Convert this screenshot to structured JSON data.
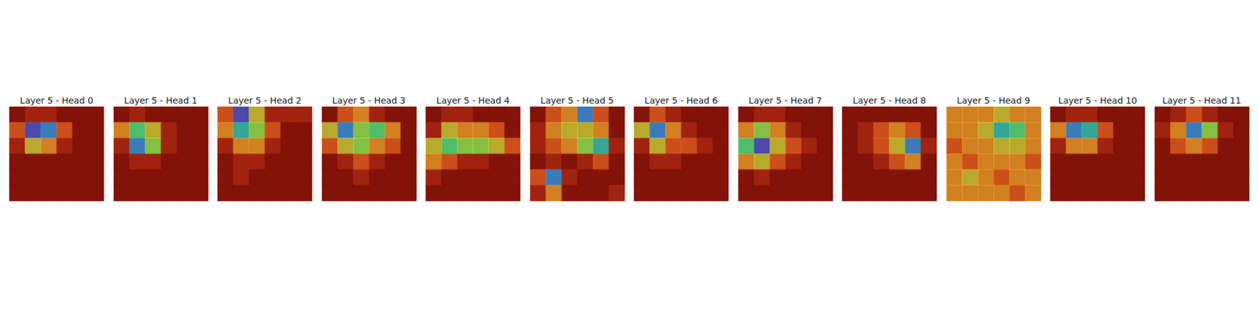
{
  "chart_data": [
    {
      "type": "heatmap",
      "title": "Layer 5 - Head 0",
      "tick_labels": false,
      "color_range": [
        0,
        1
      ],
      "cells": [
        [
          0,
          0.1,
          0.1,
          0,
          0,
          0
        ],
        [
          0.2,
          0.9,
          0.8,
          0.2,
          0,
          0
        ],
        [
          0.1,
          0.4,
          0.3,
          0.1,
          0,
          0
        ],
        [
          0,
          0,
          0,
          0,
          0,
          0
        ],
        [
          0,
          0,
          0,
          0,
          0,
          0
        ],
        [
          0,
          0,
          0,
          0,
          0,
          0
        ]
      ]
    },
    {
      "type": "heatmap",
      "title": "Layer 5 - Head 1",
      "tick_labels": false,
      "color_range": [
        0,
        1
      ],
      "cells": [
        [
          0,
          0.1,
          0,
          0,
          0,
          0
        ],
        [
          0.3,
          0.6,
          0.4,
          0.1,
          0,
          0
        ],
        [
          0.1,
          0.8,
          0.5,
          0.1,
          0,
          0
        ],
        [
          0,
          0.1,
          0.1,
          0,
          0,
          0
        ],
        [
          0,
          0,
          0,
          0,
          0,
          0
        ],
        [
          0,
          0,
          0,
          0,
          0,
          0
        ]
      ]
    },
    {
      "type": "heatmap",
      "title": "Layer 5 - Head 2",
      "tick_labels": false,
      "color_range": [
        0,
        1
      ],
      "cells": [
        [
          0.2,
          0.9,
          0.4,
          0.1,
          0.1,
          0.1
        ],
        [
          0.3,
          0.7,
          0.5,
          0.2,
          0,
          0
        ],
        [
          0.1,
          0.3,
          0.3,
          0.1,
          0,
          0
        ],
        [
          0,
          0.1,
          0.1,
          0,
          0,
          0
        ],
        [
          0,
          0.1,
          0,
          0,
          0,
          0
        ],
        [
          0,
          0,
          0,
          0,
          0,
          0
        ]
      ]
    },
    {
      "type": "heatmap",
      "title": "Layer 5 - Head 3",
      "tick_labels": false,
      "color_range": [
        0,
        1
      ],
      "cells": [
        [
          0,
          0.2,
          0.3,
          0.1,
          0,
          0
        ],
        [
          0.4,
          0.8,
          0.5,
          0.6,
          0.3,
          0
        ],
        [
          0.2,
          0.4,
          0.5,
          0.3,
          0.2,
          0
        ],
        [
          0,
          0.1,
          0.2,
          0.1,
          0,
          0
        ],
        [
          0,
          0,
          0.1,
          0,
          0,
          0
        ],
        [
          0,
          0,
          0,
          0,
          0,
          0
        ]
      ]
    },
    {
      "type": "heatmap",
      "title": "Layer 5 - Head 4",
      "tick_labels": false,
      "color_range": [
        0,
        1
      ],
      "cells": [
        [
          0,
          0.1,
          0.1,
          0,
          0,
          0
        ],
        [
          0.1,
          0.4,
          0.3,
          0.3,
          0.2,
          0
        ],
        [
          0.4,
          0.6,
          0.5,
          0.5,
          0.4,
          0.2
        ],
        [
          0.3,
          0.2,
          0.1,
          0.1,
          0,
          0
        ],
        [
          0.1,
          0,
          0,
          0,
          0,
          0
        ],
        [
          0,
          0,
          0,
          0,
          0,
          0
        ]
      ]
    },
    {
      "type": "heatmap",
      "title": "Layer 5 - Head 5",
      "tick_labels": false,
      "color_range": [
        0,
        1
      ],
      "cells": [
        [
          0,
          0.2,
          0.3,
          0.8,
          0.2,
          0
        ],
        [
          0.1,
          0.3,
          0.4,
          0.4,
          0.3,
          0
        ],
        [
          0.1,
          0.2,
          0.3,
          0.5,
          0.7,
          0.1
        ],
        [
          0,
          0.1,
          0,
          0.1,
          0.2,
          0
        ],
        [
          0.2,
          0.8,
          0.1,
          0,
          0,
          0
        ],
        [
          0.1,
          0.3,
          0,
          0,
          0,
          0.1
        ]
      ]
    },
    {
      "type": "heatmap",
      "title": "Layer 5 - Head 6",
      "tick_labels": false,
      "color_range": [
        0,
        1
      ],
      "cells": [
        [
          0,
          0.2,
          0.1,
          0,
          0,
          0
        ],
        [
          0.4,
          0.8,
          0.3,
          0.1,
          0,
          0
        ],
        [
          0.1,
          0.4,
          0.2,
          0.2,
          0.1,
          0
        ],
        [
          0,
          0.1,
          0.1,
          0,
          0,
          0
        ],
        [
          0,
          0,
          0,
          0,
          0,
          0
        ],
        [
          0,
          0,
          0,
          0,
          0,
          0
        ]
      ]
    },
    {
      "type": "heatmap",
      "title": "Layer 5 - Head 7",
      "tick_labels": false,
      "color_range": [
        0,
        1
      ],
      "cells": [
        [
          0,
          0.1,
          0.1,
          0,
          0,
          0
        ],
        [
          0.3,
          0.5,
          0.3,
          0.1,
          0,
          0
        ],
        [
          0.6,
          0.9,
          0.4,
          0.2,
          0.1,
          0
        ],
        [
          0.3,
          0.4,
          0.2,
          0.1,
          0,
          0
        ],
        [
          0,
          0.1,
          0,
          0,
          0,
          0
        ],
        [
          0,
          0,
          0,
          0,
          0,
          0
        ]
      ]
    },
    {
      "type": "heatmap",
      "title": "Layer 5 - Head 8",
      "tick_labels": false,
      "color_range": [
        0,
        1
      ],
      "cells": [
        [
          0,
          0,
          0,
          0,
          0,
          0
        ],
        [
          0,
          0.1,
          0.2,
          0.3,
          0.2,
          0
        ],
        [
          0,
          0.1,
          0.2,
          0.4,
          0.8,
          0.1
        ],
        [
          0,
          0,
          0.1,
          0.2,
          0.3,
          0
        ],
        [
          0,
          0,
          0,
          0,
          0,
          0
        ],
        [
          0,
          0,
          0,
          0,
          0,
          0
        ]
      ]
    },
    {
      "type": "heatmap",
      "title": "Layer 5 - Head 9",
      "tick_labels": false,
      "color_range": [
        0,
        1
      ],
      "cells": [
        [
          0.3,
          0.3,
          0.3,
          0.4,
          0.3,
          0.3
        ],
        [
          0.3,
          0.3,
          0.4,
          0.7,
          0.6,
          0.3
        ],
        [
          0.2,
          0.3,
          0.3,
          0.4,
          0.4,
          0.3
        ],
        [
          0.3,
          0.2,
          0.3,
          0.3,
          0.3,
          0.2
        ],
        [
          0.3,
          0.4,
          0.3,
          0.2,
          0.3,
          0.3
        ],
        [
          0.3,
          0.3,
          0.3,
          0.3,
          0.2,
          0.3
        ]
      ]
    },
    {
      "type": "heatmap",
      "title": "Layer 5 - Head 10",
      "tick_labels": false,
      "color_range": [
        0,
        1
      ],
      "cells": [
        [
          0,
          0.1,
          0.1,
          0,
          0,
          0
        ],
        [
          0.3,
          0.8,
          0.7,
          0.2,
          0,
          0
        ],
        [
          0.1,
          0.3,
          0.3,
          0.1,
          0,
          0
        ],
        [
          0,
          0,
          0,
          0,
          0,
          0
        ],
        [
          0,
          0,
          0,
          0,
          0,
          0
        ],
        [
          0,
          0,
          0,
          0,
          0,
          0
        ]
      ]
    },
    {
      "type": "heatmap",
      "title": "Layer 5 - Head 11",
      "tick_labels": false,
      "color_range": [
        0,
        1
      ],
      "cells": [
        [
          0,
          0.1,
          0.2,
          0.1,
          0,
          0
        ],
        [
          0.1,
          0.3,
          0.8,
          0.5,
          0.1,
          0
        ],
        [
          0,
          0.2,
          0.3,
          0.2,
          0,
          0
        ],
        [
          0,
          0,
          0,
          0,
          0,
          0
        ],
        [
          0,
          0,
          0,
          0,
          0,
          0
        ],
        [
          0,
          0,
          0,
          0,
          0,
          0
        ]
      ]
    }
  ]
}
